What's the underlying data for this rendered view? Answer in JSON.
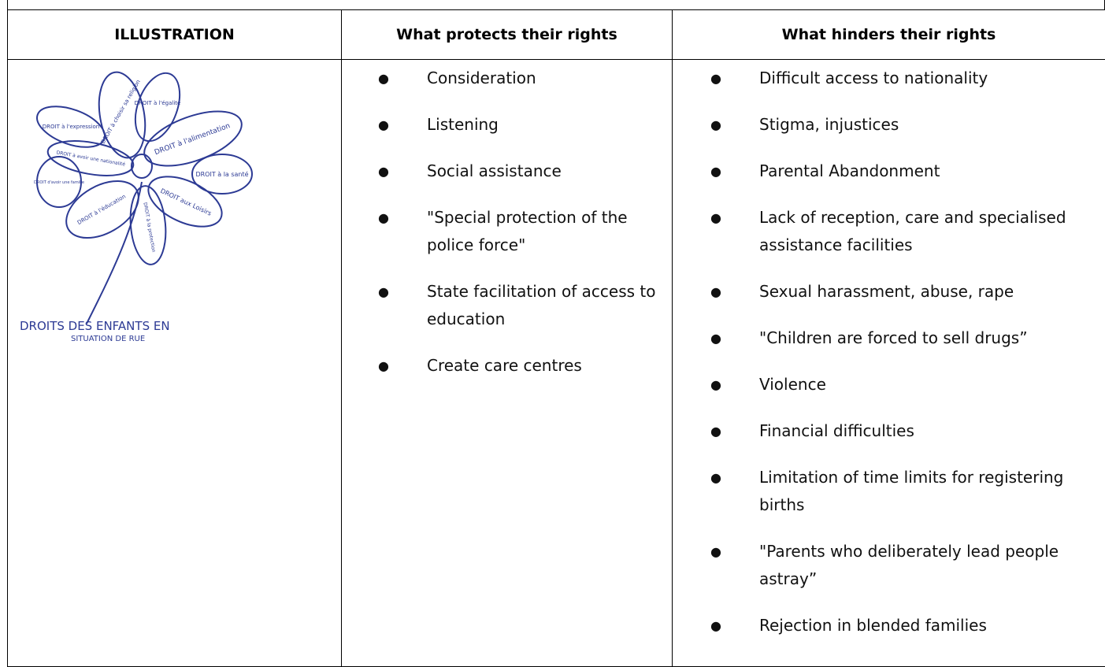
{
  "table": {
    "headers": [
      "ILLUSTRATION",
      "What protects their rights",
      "What hinders their rights"
    ],
    "illustration": {
      "petals": [
        "DROIT à l'égalité",
        "DROIT à choisir sa religion",
        "DROIT à l'expression",
        "DROIT à l'alimentation",
        "DROIT à avoir une nationalité",
        "DROIT à la santé",
        "DROIT d'avoir une famille",
        "DROIT à l'éducation",
        "DROIT aux Loisirs",
        "DROIT à la protection"
      ],
      "caption": [
        "DROITS DES ENFANTS EN",
        "SITUATION DE RUE"
      ]
    },
    "protects": [
      "Consideration",
      "Listening",
      "Social assistance",
      "\"Special protection of the police force\"",
      "State facilitation of access to education",
      "Create care centres"
    ],
    "hinders": [
      "Difficult access to nationality",
      "Stigma, injustices",
      "Parental Abandonment",
      "Lack of reception, care and specialised assistance facilities",
      "Sexual harassment, abuse, rape",
      "\"Children are forced to sell drugs”",
      "Violence",
      "Financial difficulties",
      "Limitation of time limits for registering births",
      "\"Parents who deliberately lead people astray”",
      "Rejection in blended families"
    ]
  }
}
